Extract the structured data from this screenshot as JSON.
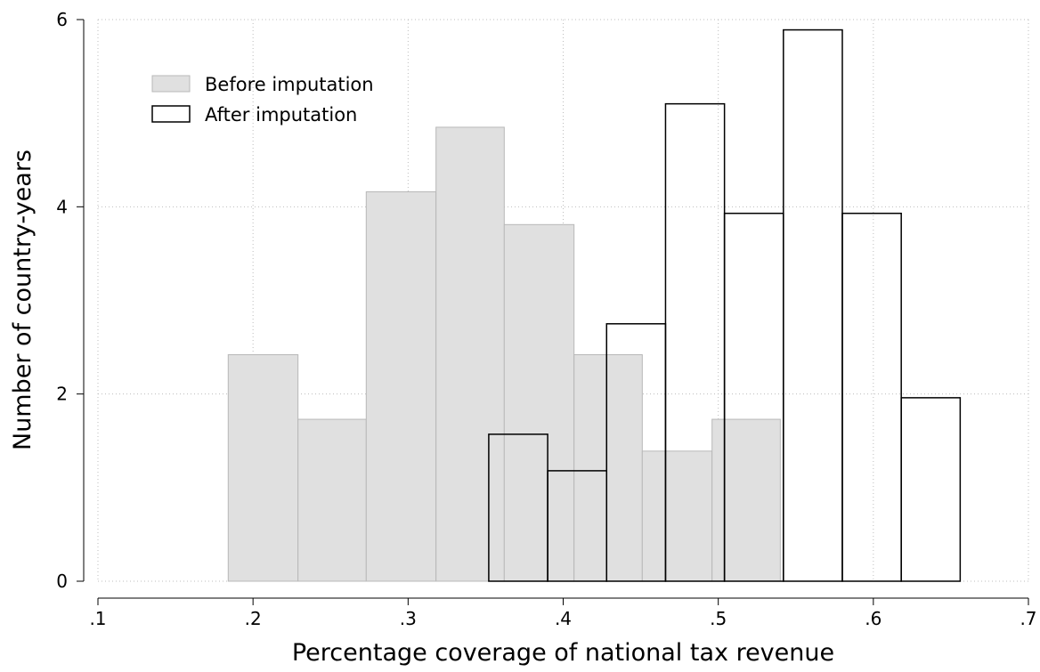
{
  "chart_data": {
    "type": "bar",
    "subtype": "overlaid-histogram",
    "xlabel": "Percentage coverage of national tax revenue",
    "ylabel": "Number of country-years",
    "xlim": [
      0.1,
      0.7
    ],
    "ylim": [
      0,
      6
    ],
    "x_ticks": [
      {
        "value": 0.1,
        "label": ".1"
      },
      {
        "value": 0.2,
        "label": ".2"
      },
      {
        "value": 0.3,
        "label": ".3"
      },
      {
        "value": 0.4,
        "label": ".4"
      },
      {
        "value": 0.5,
        "label": ".5"
      },
      {
        "value": 0.6,
        "label": ".6"
      },
      {
        "value": 0.7,
        "label": ".7"
      }
    ],
    "y_ticks": [
      {
        "value": 0,
        "label": "0"
      },
      {
        "value": 2,
        "label": "2"
      },
      {
        "value": 4,
        "label": "4"
      },
      {
        "value": 6,
        "label": "6"
      }
    ],
    "grid": true,
    "legend_position": "top-left",
    "series": [
      {
        "name": "Before imputation",
        "fill": "#e0e0e0",
        "stroke": "#b8b8b8",
        "bins": [
          {
            "x0": 0.184,
            "x1": 0.229,
            "value": 2.42
          },
          {
            "x0": 0.229,
            "x1": 0.273,
            "value": 1.73
          },
          {
            "x0": 0.273,
            "x1": 0.318,
            "value": 4.16
          },
          {
            "x0": 0.318,
            "x1": 0.362,
            "value": 4.85
          },
          {
            "x0": 0.362,
            "x1": 0.407,
            "value": 3.81
          },
          {
            "x0": 0.407,
            "x1": 0.451,
            "value": 2.42
          },
          {
            "x0": 0.451,
            "x1": 0.496,
            "value": 1.39
          },
          {
            "x0": 0.496,
            "x1": 0.54,
            "value": 1.73
          }
        ]
      },
      {
        "name": "After imputation",
        "fill": "none",
        "stroke": "#000000",
        "bins": [
          {
            "x0": 0.352,
            "x1": 0.39,
            "value": 1.57
          },
          {
            "x0": 0.39,
            "x1": 0.428,
            "value": 1.18
          },
          {
            "x0": 0.428,
            "x1": 0.466,
            "value": 2.75
          },
          {
            "x0": 0.466,
            "x1": 0.504,
            "value": 5.1
          },
          {
            "x0": 0.504,
            "x1": 0.542,
            "value": 3.93
          },
          {
            "x0": 0.542,
            "x1": 0.58,
            "value": 5.89
          },
          {
            "x0": 0.58,
            "x1": 0.618,
            "value": 3.93
          },
          {
            "x0": 0.618,
            "x1": 0.656,
            "value": 1.96
          }
        ]
      }
    ]
  }
}
